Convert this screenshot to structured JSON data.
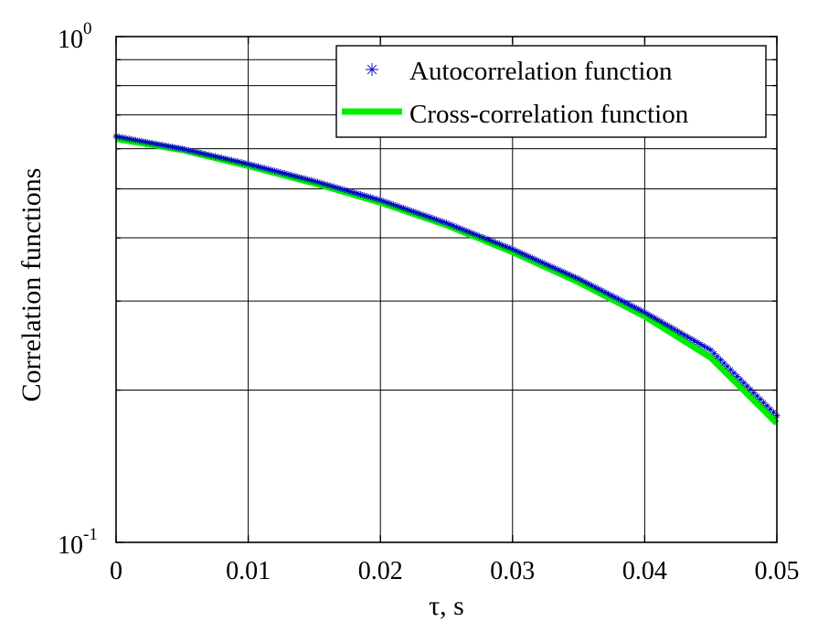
{
  "chart_data": {
    "type": "line",
    "x_label": "τ, s",
    "y_label": "Correlation functions",
    "x_scale": "linear",
    "y_scale": "log",
    "xlim": [
      0,
      0.05
    ],
    "ylim": [
      0.1,
      1
    ],
    "x_ticks": [
      0,
      0.01,
      0.02,
      0.03,
      0.04,
      0.05
    ],
    "x_tick_labels": [
      "0",
      "0.01",
      "0.02",
      "0.03",
      "0.04",
      "0.05"
    ],
    "y_ticks": [
      0.1,
      1
    ],
    "y_tick_labels": [
      {
        "base": "10",
        "exp": "-1"
      },
      {
        "base": "10",
        "exp": "0"
      }
    ],
    "grid": true,
    "legend_position": "top-right",
    "series": [
      {
        "name": "Autocorrelation function",
        "style": "markers",
        "marker": "*",
        "color": "#0000cc",
        "x": [
          0,
          0.005,
          0.01,
          0.015,
          0.02,
          0.025,
          0.03,
          0.035,
          0.04,
          0.045,
          0.05
        ],
        "y": [
          0.635,
          0.6,
          0.56,
          0.518,
          0.475,
          0.428,
          0.38,
          0.332,
          0.285,
          0.24,
          0.178
        ]
      },
      {
        "name": "Cross-correlation function",
        "style": "line",
        "color": "#00ee00",
        "x": [
          0,
          0.005,
          0.01,
          0.015,
          0.02,
          0.025,
          0.03,
          0.035,
          0.04,
          0.045,
          0.05
        ],
        "y": [
          0.628,
          0.597,
          0.555,
          0.513,
          0.47,
          0.424,
          0.375,
          0.327,
          0.28,
          0.232,
          0.172
        ]
      }
    ]
  }
}
